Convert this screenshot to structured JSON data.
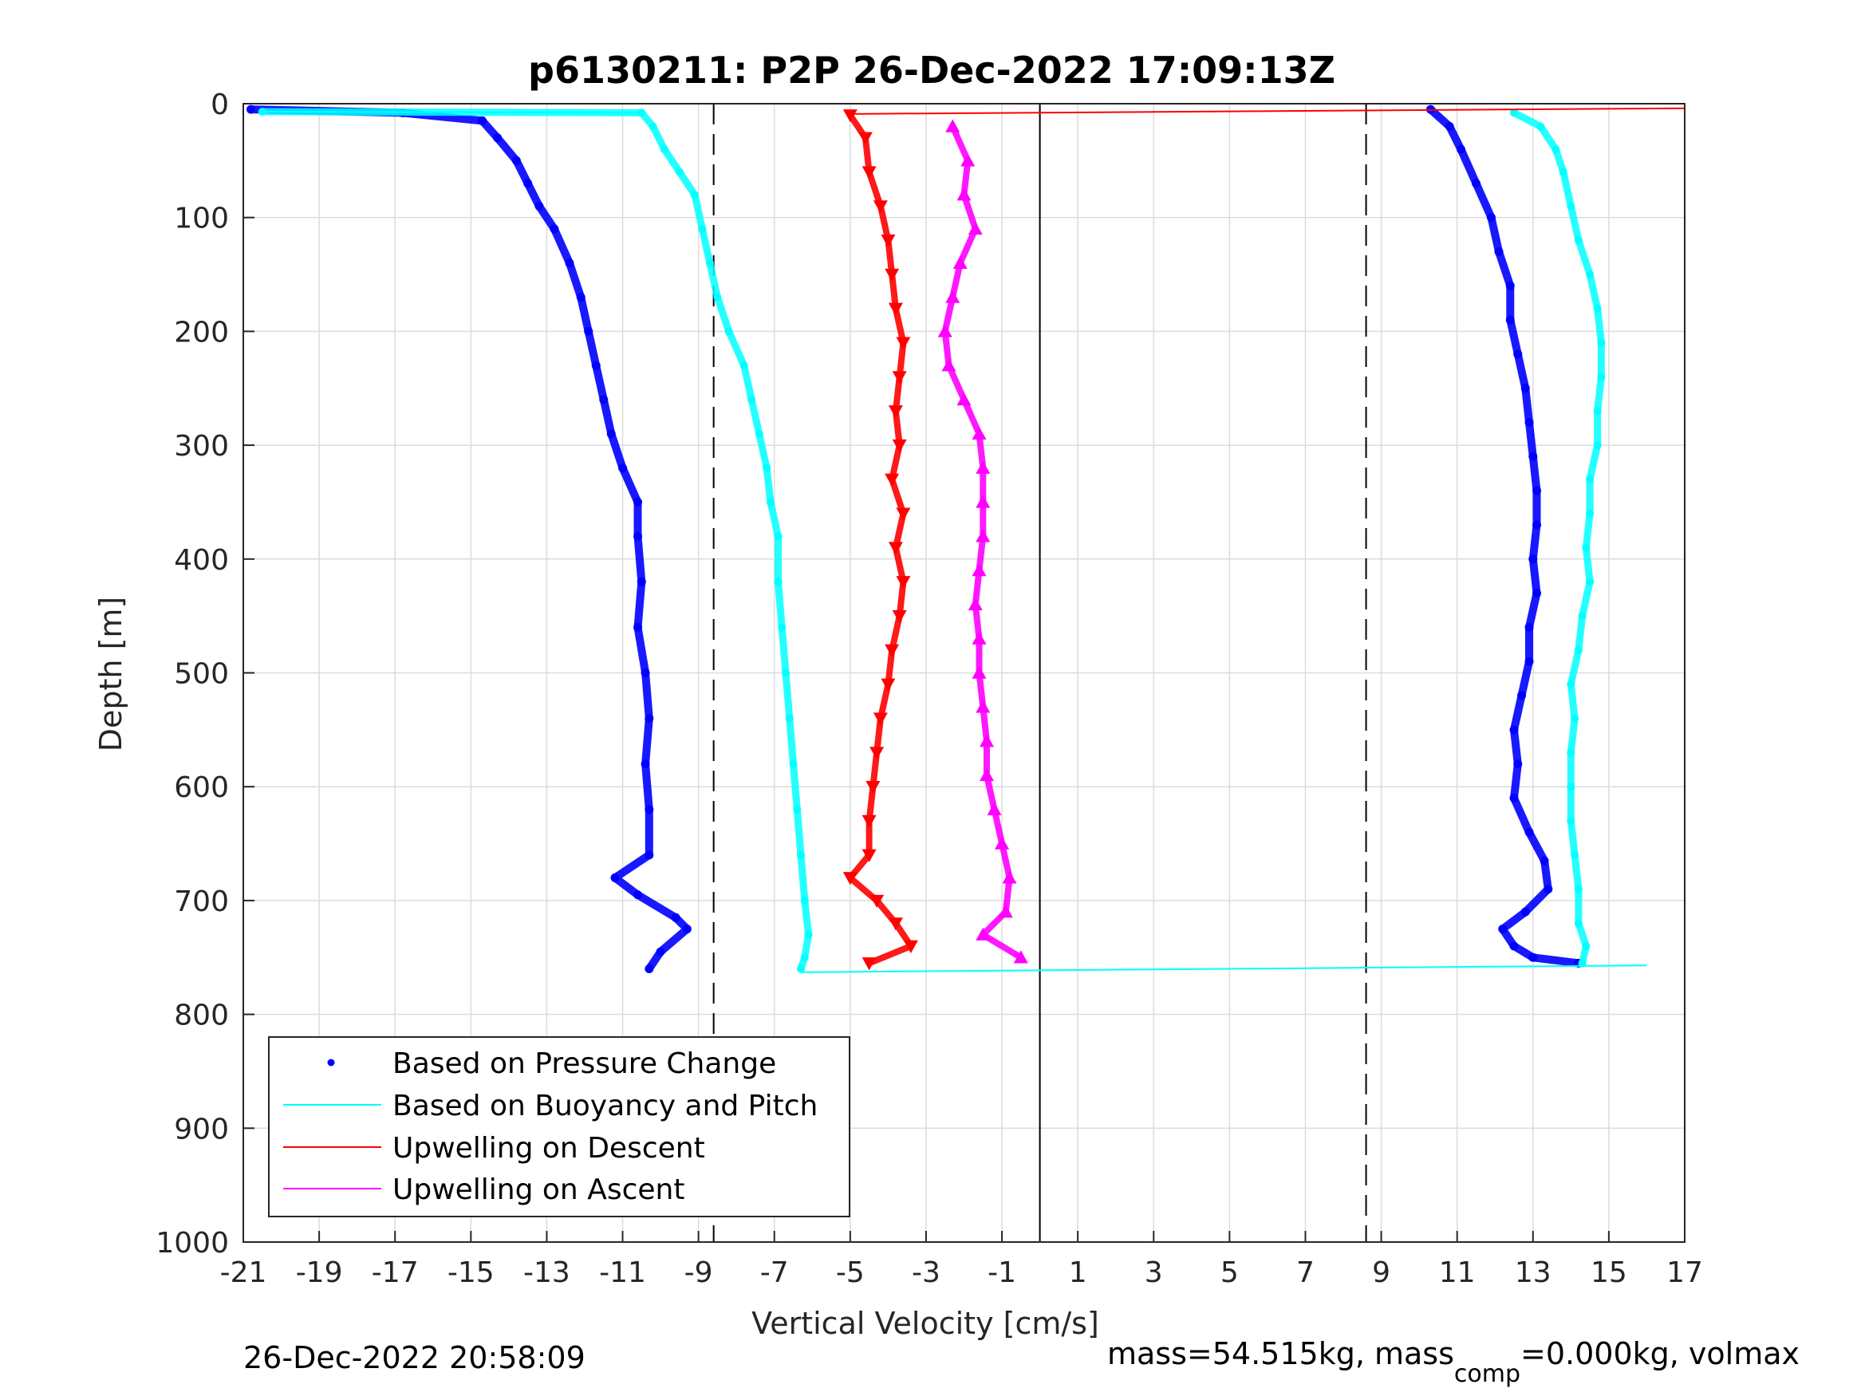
{
  "chart_data": {
    "type": "scatter",
    "title": "p6130211: P2P 26-Dec-2022 17:09:13Z",
    "xlabel": "Vertical Velocity [cm/s]",
    "ylabel": "Depth [m]",
    "xlim": [
      -21,
      17
    ],
    "ylim": [
      0,
      1000
    ],
    "y_reversed": true,
    "grid": true,
    "x_ticks": [
      -21,
      -19,
      -17,
      -15,
      -13,
      -11,
      -9,
      -7,
      -5,
      -3,
      -1,
      1,
      3,
      5,
      7,
      9,
      11,
      13,
      15,
      17
    ],
    "y_ticks": [
      0,
      100,
      200,
      300,
      400,
      500,
      600,
      700,
      800,
      900,
      1000
    ],
    "reference_lines": {
      "solid_x": [
        0
      ],
      "dashed_x": [
        -8.6,
        8.6
      ]
    },
    "legend_position": "bottom-left",
    "series": [
      {
        "name": "Based on Pressure Change",
        "style": "dots",
        "color": "#0000ff",
        "descent": [
          [
            -20.8,
            5
          ],
          [
            -16.8,
            8
          ],
          [
            -14.7,
            15
          ],
          [
            -14.3,
            30
          ],
          [
            -13.8,
            50
          ],
          [
            -13.5,
            70
          ],
          [
            -13.2,
            90
          ],
          [
            -12.8,
            110
          ],
          [
            -12.4,
            140
          ],
          [
            -12.1,
            170
          ],
          [
            -11.9,
            200
          ],
          [
            -11.7,
            230
          ],
          [
            -11.5,
            260
          ],
          [
            -11.3,
            290
          ],
          [
            -11.0,
            320
          ],
          [
            -10.6,
            350
          ],
          [
            -10.6,
            380
          ],
          [
            -10.5,
            420
          ],
          [
            -10.6,
            460
          ],
          [
            -10.4,
            500
          ],
          [
            -10.3,
            540
          ],
          [
            -10.4,
            580
          ],
          [
            -10.3,
            620
          ],
          [
            -10.3,
            660
          ],
          [
            -11.2,
            680
          ],
          [
            -10.6,
            695
          ],
          [
            -9.6,
            715
          ],
          [
            -9.3,
            725
          ],
          [
            -10.0,
            745
          ],
          [
            -10.3,
            760
          ]
        ],
        "ascent": [
          [
            10.3,
            5
          ],
          [
            10.8,
            20
          ],
          [
            11.1,
            40
          ],
          [
            11.5,
            70
          ],
          [
            11.9,
            100
          ],
          [
            12.1,
            130
          ],
          [
            12.4,
            160
          ],
          [
            12.4,
            190
          ],
          [
            12.6,
            220
          ],
          [
            12.8,
            250
          ],
          [
            12.9,
            280
          ],
          [
            13.0,
            310
          ],
          [
            13.1,
            340
          ],
          [
            13.1,
            370
          ],
          [
            13.0,
            400
          ],
          [
            13.1,
            430
          ],
          [
            12.9,
            460
          ],
          [
            12.9,
            490
          ],
          [
            12.7,
            520
          ],
          [
            12.5,
            550
          ],
          [
            12.6,
            580
          ],
          [
            12.5,
            610
          ],
          [
            12.9,
            640
          ],
          [
            13.3,
            665
          ],
          [
            13.4,
            690
          ],
          [
            12.8,
            710
          ],
          [
            12.2,
            725
          ],
          [
            12.5,
            740
          ],
          [
            13.0,
            750
          ],
          [
            14.2,
            755
          ]
        ]
      },
      {
        "name": "Based on Buoyancy and Pitch",
        "style": "line",
        "color": "#00ffff",
        "descent": [
          [
            -20.5,
            7
          ],
          [
            -10.5,
            8
          ],
          [
            -10.2,
            20
          ],
          [
            -9.9,
            40
          ],
          [
            -9.5,
            60
          ],
          [
            -9.1,
            80
          ],
          [
            -8.9,
            110
          ],
          [
            -8.7,
            140
          ],
          [
            -8.5,
            170
          ],
          [
            -8.2,
            200
          ],
          [
            -7.8,
            230
          ],
          [
            -7.6,
            260
          ],
          [
            -7.4,
            290
          ],
          [
            -7.2,
            320
          ],
          [
            -7.1,
            350
          ],
          [
            -6.9,
            380
          ],
          [
            -6.9,
            420
          ],
          [
            -6.8,
            460
          ],
          [
            -6.7,
            500
          ],
          [
            -6.6,
            540
          ],
          [
            -6.5,
            580
          ],
          [
            -6.4,
            620
          ],
          [
            -6.3,
            660
          ],
          [
            -6.2,
            700
          ],
          [
            -6.1,
            730
          ],
          [
            -6.2,
            750
          ],
          [
            -6.3,
            760
          ]
        ],
        "ascent": [
          [
            12.5,
            8
          ],
          [
            13.2,
            20
          ],
          [
            13.6,
            40
          ],
          [
            13.8,
            60
          ],
          [
            14.0,
            90
          ],
          [
            14.2,
            120
          ],
          [
            14.5,
            150
          ],
          [
            14.7,
            180
          ],
          [
            14.8,
            210
          ],
          [
            14.8,
            240
          ],
          [
            14.7,
            270
          ],
          [
            14.7,
            300
          ],
          [
            14.5,
            330
          ],
          [
            14.5,
            360
          ],
          [
            14.4,
            390
          ],
          [
            14.5,
            420
          ],
          [
            14.3,
            450
          ],
          [
            14.2,
            480
          ],
          [
            14.0,
            510
          ],
          [
            14.1,
            540
          ],
          [
            14.0,
            570
          ],
          [
            14.0,
            600
          ],
          [
            14.0,
            630
          ],
          [
            14.1,
            660
          ],
          [
            14.2,
            690
          ],
          [
            14.2,
            720
          ],
          [
            14.4,
            740
          ],
          [
            14.3,
            755
          ]
        ]
      },
      {
        "name": "Upwelling on Descent",
        "style": "triangles-down",
        "color": "#ff0000",
        "values": [
          [
            -5.0,
            10
          ],
          [
            -4.6,
            30
          ],
          [
            -4.5,
            60
          ],
          [
            -4.2,
            90
          ],
          [
            -4.0,
            120
          ],
          [
            -3.9,
            150
          ],
          [
            -3.8,
            180
          ],
          [
            -3.6,
            210
          ],
          [
            -3.7,
            240
          ],
          [
            -3.8,
            270
          ],
          [
            -3.7,
            300
          ],
          [
            -3.9,
            330
          ],
          [
            -3.6,
            360
          ],
          [
            -3.8,
            390
          ],
          [
            -3.6,
            420
          ],
          [
            -3.7,
            450
          ],
          [
            -3.9,
            480
          ],
          [
            -4.0,
            510
          ],
          [
            -4.2,
            540
          ],
          [
            -4.3,
            570
          ],
          [
            -4.4,
            600
          ],
          [
            -4.5,
            630
          ],
          [
            -4.5,
            660
          ],
          [
            -5.0,
            680
          ],
          [
            -4.3,
            700
          ],
          [
            -3.8,
            720
          ],
          [
            -3.4,
            740
          ],
          [
            -4.5,
            755
          ]
        ]
      },
      {
        "name": "Upwelling on Ascent",
        "style": "triangles-up",
        "color": "#ff00ff",
        "values": [
          [
            -2.3,
            20
          ],
          [
            -1.9,
            50
          ],
          [
            -2.0,
            80
          ],
          [
            -1.7,
            110
          ],
          [
            -2.1,
            140
          ],
          [
            -2.3,
            170
          ],
          [
            -2.5,
            200
          ],
          [
            -2.4,
            230
          ],
          [
            -2.0,
            260
          ],
          [
            -1.6,
            290
          ],
          [
            -1.5,
            320
          ],
          [
            -1.5,
            350
          ],
          [
            -1.5,
            380
          ],
          [
            -1.6,
            410
          ],
          [
            -1.7,
            440
          ],
          [
            -1.6,
            470
          ],
          [
            -1.6,
            500
          ],
          [
            -1.5,
            530
          ],
          [
            -1.4,
            560
          ],
          [
            -1.4,
            590
          ],
          [
            -1.2,
            620
          ],
          [
            -1.0,
            650
          ],
          [
            -0.8,
            680
          ],
          [
            -0.9,
            710
          ],
          [
            -1.5,
            730
          ],
          [
            -0.5,
            750
          ]
        ]
      }
    ],
    "annotations_footer_left": "26-Dec-2022 20:58:09",
    "annotations_footer_right": "mass=54.515kg, mass",
    "annotations_footer_right_sub": "comp",
    "annotations_footer_right_tail": "=0.000kg, volmax"
  },
  "legend": {
    "items": [
      "Based on Pressure Change",
      "Based on Buoyancy and Pitch",
      "Upwelling on Descent",
      "Upwelling on Ascent"
    ]
  }
}
